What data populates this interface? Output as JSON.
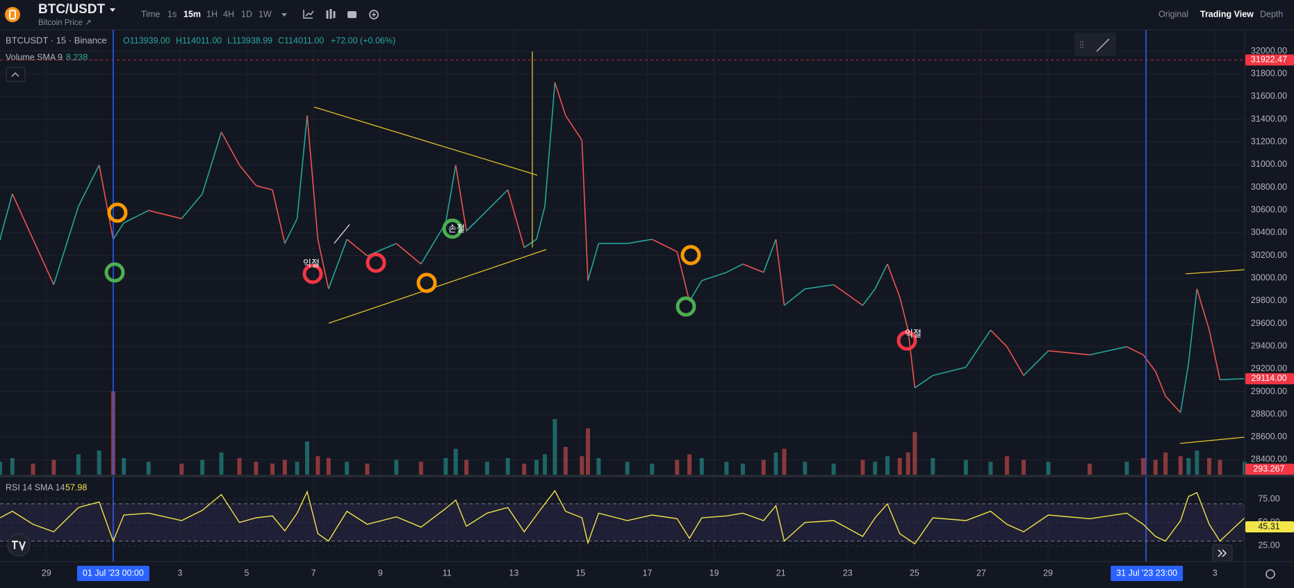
{
  "header": {
    "symbol": "BTC/USDT",
    "subtitle": "Bitcoin Price ↗",
    "timeframes": [
      "Time",
      "1s",
      "15m",
      "1H",
      "4H",
      "1D",
      "1W"
    ],
    "active_timeframe": "15m",
    "views": [
      "Original",
      "Trading View",
      "Depth"
    ],
    "active_view": "Trading View"
  },
  "legend": {
    "ticker": "BTCUSDT · 15 · Binance",
    "open": "O113939.00",
    "high": "H114011.00",
    "low": "L113938.99",
    "close": "C114011.00",
    "change": "+72.00 (+0.06%)",
    "volume_label": "Volume SMA 9",
    "volume_value": "8.238",
    "rsi_label": "RSI 14 SMA 14",
    "rsi_value": "57.98"
  },
  "annotations": [
    "익절",
    "손절",
    "익절"
  ],
  "chart_data": {
    "type": "line",
    "x": [
      -3.39,
      -3.02,
      -2.4,
      -1.78,
      -1.04,
      -0.42,
      0,
      0.32,
      1.06,
      2.05,
      2.67,
      3.24,
      3.78,
      4.28,
      4.77,
      5.14,
      5.51,
      5.81,
      6.13,
      6.45,
      7.0,
      7.61,
      8.48,
      9.22,
      9.96,
      10.26,
      10.58,
      11.2,
      11.82,
      12.31,
      12.68,
      12.93,
      13.23,
      13.55,
      14.04,
      14.22,
      14.54,
      15.4,
      16.14,
      16.89,
      17.26,
      17.63,
      18.37,
      18.86,
      19.48,
      19.85,
      20.1,
      20.72,
      21.58,
      22.45,
      22.82,
      23.19,
      23.56,
      23.81,
      24.01,
      24.55,
      25.54,
      26.28,
      26.77,
      27.27,
      28.01,
      29.25,
      30.36,
      30.85,
      31.22,
      31.52,
      31.97,
      32.21,
      32.46,
      32.83,
      33.15,
      33.89
    ],
    "values": [
      30342,
      30742,
      30342,
      29942,
      30633,
      30996,
      30342,
      30487,
      30596,
      30524,
      30742,
      31287,
      30996,
      30815,
      30778,
      30305,
      30524,
      31433,
      30342,
      29905,
      30342,
      30196,
      30305,
      30124,
      30487,
      30996,
      30415,
      30596,
      30778,
      30269,
      30342,
      30633,
      31724,
      31433,
      31215,
      29978,
      30305,
      30305,
      30342,
      30233,
      29796,
      29978,
      30051,
      30124,
      30051,
      30342,
      29760,
      29905,
      29942,
      29760,
      29905,
      30124,
      29833,
      29542,
      29033,
      29142,
      29215,
      29542,
      29396,
      29142,
      29360,
      29324,
      29396,
      29324,
      29178,
      28960,
      28815,
      29251,
      29905,
      29542,
      29105,
      29114
    ],
    "up_color": "#26a69a",
    "down_color": "#ef5350",
    "xlim": [
      -3.39,
      33.89
    ],
    "xticks": [
      {
        "value": -2,
        "label": "29"
      },
      {
        "value": 0,
        "label": "01 Jul '23   00:00",
        "highlighted": true
      },
      {
        "value": 2,
        "label": "3"
      },
      {
        "value": 4,
        "label": "5"
      },
      {
        "value": 6,
        "label": "7"
      },
      {
        "value": 8,
        "label": "9"
      },
      {
        "value": 10,
        "label": "11"
      },
      {
        "value": 12,
        "label": "13"
      },
      {
        "value": 14,
        "label": "15"
      },
      {
        "value": 16,
        "label": "17"
      },
      {
        "value": 18,
        "label": "19"
      },
      {
        "value": 20,
        "label": "21"
      },
      {
        "value": 22,
        "label": "23"
      },
      {
        "value": 24,
        "label": "25"
      },
      {
        "value": 26,
        "label": "27"
      },
      {
        "value": 28,
        "label": "29"
      },
      {
        "value": 30.958,
        "label": "31 Jul '23   23:00",
        "highlighted": true
      },
      {
        "value": 33,
        "label": "3"
      }
    ],
    "ylim": [
      28268,
      32187
    ],
    "yticks": [
      {
        "value": 28400,
        "label": "28400.00"
      },
      {
        "value": 28600,
        "label": "28600.00"
      },
      {
        "value": 28800,
        "label": "28800.00"
      },
      {
        "value": 29000,
        "label": "29000.00"
      },
      {
        "value": 29200,
        "label": "29200.00"
      },
      {
        "value": 29400,
        "label": "29400.00"
      },
      {
        "value": 29600,
        "label": "29600.00"
      },
      {
        "value": 29800,
        "label": "29800.00"
      },
      {
        "value": 30000,
        "label": "30000.00"
      },
      {
        "value": 30200,
        "label": "30200.00"
      },
      {
        "value": 30400,
        "label": "30400.00"
      },
      {
        "value": 30600,
        "label": "30600.00"
      },
      {
        "value": 30800,
        "label": "30800.00"
      },
      {
        "value": 31000,
        "label": "31000.00"
      },
      {
        "value": 31200,
        "label": "31200.00"
      },
      {
        "value": 31400,
        "label": "31400.00"
      },
      {
        "value": 31600,
        "label": "31600.00"
      },
      {
        "value": 31800,
        "label": "31800.00"
      },
      {
        "value": 32000,
        "label": "32000.00"
      }
    ],
    "grid": true,
    "price_tags": [
      {
        "value": 31922.47,
        "label": "31922.47",
        "color": "#f23645",
        "line": "dashed"
      },
      {
        "value": 29114,
        "label": "29114.00",
        "color": "#f23645"
      }
    ],
    "volume": {
      "values": [
        700,
        900,
        600,
        800,
        1100,
        1300,
        4500,
        900,
        700,
        600,
        800,
        1200,
        900,
        700,
        600,
        800,
        700,
        1800,
        1000,
        900,
        700,
        600,
        800,
        700,
        900,
        1400,
        800,
        700,
        900,
        600,
        800,
        1100,
        3000,
        1500,
        1000,
        2500,
        900,
        700,
        600,
        800,
        1100,
        900,
        700,
        600,
        800,
        1200,
        1400,
        700,
        600,
        800,
        700,
        1000,
        900,
        1200,
        2300,
        900,
        800,
        700,
        1000,
        800,
        700,
        600,
        700,
        900,
        800,
        1200,
        1000,
        900,
        1300,
        900,
        800,
        700
      ],
      "ylim": [
        0,
        6000
      ],
      "up_color": "#26a69a",
      "down_color": "#ef5350",
      "tag": {
        "value": 293.267,
        "label": "293.267",
        "color": "#f23645"
      }
    },
    "rsi": {
      "values": [
        55,
        62,
        48,
        40,
        66,
        72,
        30,
        58,
        60,
        52,
        63,
        80,
        50,
        55,
        57,
        41,
        60,
        83,
        38,
        30,
        62,
        48,
        56,
        45,
        65,
        74,
        46,
        60,
        66,
        40,
        58,
        70,
        84,
        62,
        55,
        28,
        60,
        52,
        58,
        54,
        33,
        55,
        57,
        60,
        52,
        68,
        30,
        50,
        52,
        35,
        55,
        70,
        38,
        32,
        27,
        55,
        52,
        62,
        48,
        40,
        58,
        54,
        60,
        48,
        35,
        30,
        52,
        78,
        82,
        48,
        30,
        55
      ],
      "ylim": [
        8,
        99
      ],
      "yticks": [
        {
          "value": 25,
          "label": "25.00"
        },
        {
          "value": 50,
          "label": "50.00"
        },
        {
          "value": 75,
          "label": "75.00"
        }
      ],
      "bands": [
        30,
        70
      ],
      "color": "#f2e64a",
      "tag": {
        "value": 45.31,
        "label": "45.31",
        "color": "#f2e64a"
      }
    }
  }
}
